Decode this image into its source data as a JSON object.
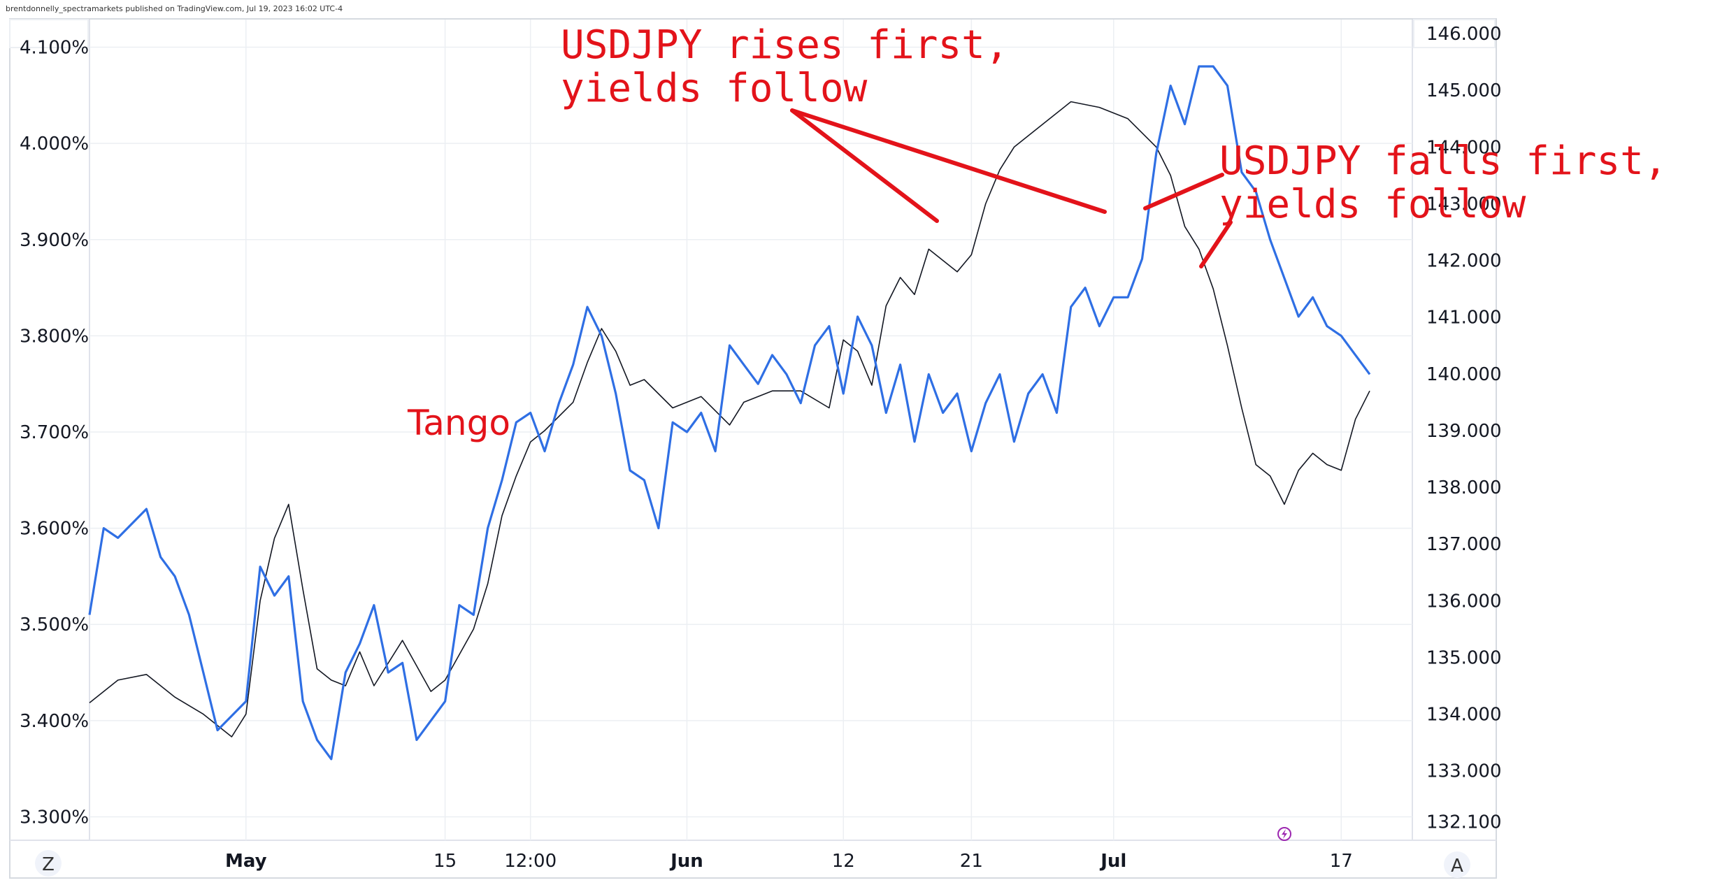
{
  "attribution": "brentdonnelly_spectramarkets published on TradingView.com, Jul 19, 2023 16:02 UTC-4",
  "colors": {
    "usdjpy": "#131722",
    "yield": "#2f6fe4",
    "annotation": "#e3131a",
    "grid": "#eceff3",
    "border": "#d6dae0",
    "lightning": "#9c27b0"
  },
  "buttons": {
    "left_corner": "Z",
    "right_corner": "A",
    "lightning_icon": "lightning-icon"
  },
  "annotations": {
    "rises_line1": "USDJPY rises first,",
    "rises_line2": "yields follow",
    "falls_line1": "USDJPY falls first,",
    "falls_line2": "yields follow",
    "tango": "Tango"
  },
  "chart_data": {
    "type": "line",
    "left_axis": {
      "unit": "%",
      "ticks": [
        "4.100%",
        "4.000%",
        "3.900%",
        "3.800%",
        "3.700%",
        "3.600%",
        "3.500%",
        "3.400%",
        "3.300%"
      ],
      "ylim": [
        3.28,
        4.12
      ]
    },
    "right_axis": {
      "ticks": [
        "146.000",
        "145.000",
        "144.000",
        "143.000",
        "142.000",
        "141.000",
        "140.000",
        "139.000",
        "138.000",
        "137.000",
        "136.000",
        "135.000",
        "134.000",
        "133.000",
        "132.100"
      ],
      "ylim": [
        131.85,
        146.1
      ]
    },
    "x_ticks": [
      {
        "label": "May",
        "bold": true,
        "date": "2023-05-01"
      },
      {
        "label": "15",
        "bold": false,
        "date": "2023-05-15"
      },
      {
        "label": "12:00",
        "bold": false,
        "date": "2023-05-21"
      },
      {
        "label": "Jun",
        "bold": true,
        "date": "2023-06-01"
      },
      {
        "label": "12",
        "bold": false,
        "date": "2023-06-12"
      },
      {
        "label": "21",
        "bold": false,
        "date": "2023-06-21"
      },
      {
        "label": "Jul",
        "bold": true,
        "date": "2023-07-01"
      },
      {
        "label": "17",
        "bold": false,
        "date": "2023-07-17"
      }
    ],
    "xlim": [
      "2023-04-20",
      "2023-07-22"
    ],
    "series": [
      {
        "axis": "right",
        "x": [
          "2023-04-20",
          "2023-04-22",
          "2023-04-24",
          "2023-04-26",
          "2023-04-28",
          "2023-04-30",
          "2023-05-01",
          "2023-05-02",
          "2023-05-03",
          "2023-05-04",
          "2023-05-05",
          "2023-05-06",
          "2023-05-07",
          "2023-05-08",
          "2023-05-09",
          "2023-05-10",
          "2023-05-12",
          "2023-05-14",
          "2023-05-15",
          "2023-05-17",
          "2023-05-18",
          "2023-05-19",
          "2023-05-20",
          "2023-05-21",
          "2023-05-22",
          "2023-05-24",
          "2023-05-25",
          "2023-05-26",
          "2023-05-27",
          "2023-05-28",
          "2023-05-29",
          "2023-05-31",
          "2023-06-02",
          "2023-06-04",
          "2023-06-05",
          "2023-06-07",
          "2023-06-09",
          "2023-06-11",
          "2023-06-12",
          "2023-06-13",
          "2023-06-14",
          "2023-06-15",
          "2023-06-16",
          "2023-06-17",
          "2023-06-18",
          "2023-06-20",
          "2023-06-21",
          "2023-06-22",
          "2023-06-23",
          "2023-06-24",
          "2023-06-26",
          "2023-06-28",
          "2023-06-30",
          "2023-07-02",
          "2023-07-04",
          "2023-07-05",
          "2023-07-06",
          "2023-07-07",
          "2023-07-08",
          "2023-07-09",
          "2023-07-10",
          "2023-07-11",
          "2023-07-12",
          "2023-07-13",
          "2023-07-14",
          "2023-07-15",
          "2023-07-16",
          "2023-07-17",
          "2023-07-18",
          "2023-07-19"
        ],
        "y": [
          134.2,
          134.6,
          134.7,
          134.3,
          134.0,
          133.6,
          134.0,
          136.0,
          137.1,
          137.7,
          136.2,
          134.8,
          134.6,
          134.5,
          135.1,
          134.5,
          135.3,
          134.4,
          134.6,
          135.5,
          136.3,
          137.5,
          138.2,
          138.8,
          139.0,
          139.5,
          140.2,
          140.8,
          140.4,
          139.8,
          139.9,
          139.4,
          139.6,
          139.1,
          139.5,
          139.7,
          139.7,
          139.4,
          140.6,
          140.4,
          139.8,
          141.2,
          141.7,
          141.4,
          142.2,
          141.8,
          142.1,
          143.0,
          143.6,
          144.0,
          144.4,
          144.8,
          144.7,
          144.5,
          144.0,
          143.5,
          142.6,
          142.2,
          141.5,
          140.5,
          139.4,
          138.4,
          138.2,
          137.7,
          138.3,
          138.6,
          138.4,
          138.3,
          139.2,
          139.7
        ]
      },
      {
        "axis": "left",
        "x": [
          "2023-04-20",
          "2023-04-21",
          "2023-04-22",
          "2023-04-24",
          "2023-04-25",
          "2023-04-26",
          "2023-04-27",
          "2023-04-28",
          "2023-04-29",
          "2023-05-01",
          "2023-05-02",
          "2023-05-03",
          "2023-05-04",
          "2023-05-05",
          "2023-05-06",
          "2023-05-07",
          "2023-05-08",
          "2023-05-09",
          "2023-05-10",
          "2023-05-11",
          "2023-05-12",
          "2023-05-13",
          "2023-05-15",
          "2023-05-16",
          "2023-05-17",
          "2023-05-18",
          "2023-05-19",
          "2023-05-20",
          "2023-05-21",
          "2023-05-22",
          "2023-05-23",
          "2023-05-24",
          "2023-05-25",
          "2023-05-26",
          "2023-05-27",
          "2023-05-28",
          "2023-05-29",
          "2023-05-30",
          "2023-05-31",
          "2023-06-01",
          "2023-06-02",
          "2023-06-03",
          "2023-06-04",
          "2023-06-05",
          "2023-06-06",
          "2023-06-07",
          "2023-06-08",
          "2023-06-09",
          "2023-06-10",
          "2023-06-11",
          "2023-06-12",
          "2023-06-13",
          "2023-06-14",
          "2023-06-15",
          "2023-06-16",
          "2023-06-17",
          "2023-06-18",
          "2023-06-19",
          "2023-06-20",
          "2023-06-21",
          "2023-06-22",
          "2023-06-23",
          "2023-06-24",
          "2023-06-25",
          "2023-06-26",
          "2023-06-27",
          "2023-06-28",
          "2023-06-29",
          "2023-06-30",
          "2023-07-01",
          "2023-07-02",
          "2023-07-03",
          "2023-07-04",
          "2023-07-05",
          "2023-07-06",
          "2023-07-07",
          "2023-07-08",
          "2023-07-09",
          "2023-07-10",
          "2023-07-11",
          "2023-07-12",
          "2023-07-13",
          "2023-07-14",
          "2023-07-15",
          "2023-07-16",
          "2023-07-17",
          "2023-07-18",
          "2023-07-19"
        ],
        "y": [
          3.51,
          3.6,
          3.59,
          3.62,
          3.57,
          3.55,
          3.51,
          3.45,
          3.39,
          3.42,
          3.56,
          3.53,
          3.55,
          3.42,
          3.38,
          3.36,
          3.45,
          3.48,
          3.52,
          3.45,
          3.46,
          3.38,
          3.42,
          3.52,
          3.51,
          3.6,
          3.65,
          3.71,
          3.72,
          3.68,
          3.73,
          3.77,
          3.83,
          3.8,
          3.74,
          3.66,
          3.65,
          3.6,
          3.71,
          3.7,
          3.72,
          3.68,
          3.79,
          3.77,
          3.75,
          3.78,
          3.76,
          3.73,
          3.79,
          3.81,
          3.74,
          3.82,
          3.79,
          3.72,
          3.77,
          3.69,
          3.76,
          3.72,
          3.74,
          3.68,
          3.73,
          3.76,
          3.69,
          3.74,
          3.76,
          3.72,
          3.83,
          3.85,
          3.81,
          3.84,
          3.84,
          3.88,
          3.99,
          4.06,
          4.02,
          4.08,
          4.08,
          4.06,
          3.97,
          3.95,
          3.9,
          3.86,
          3.82,
          3.84,
          3.81,
          3.8,
          3.78,
          3.76
        ]
      }
    ]
  }
}
